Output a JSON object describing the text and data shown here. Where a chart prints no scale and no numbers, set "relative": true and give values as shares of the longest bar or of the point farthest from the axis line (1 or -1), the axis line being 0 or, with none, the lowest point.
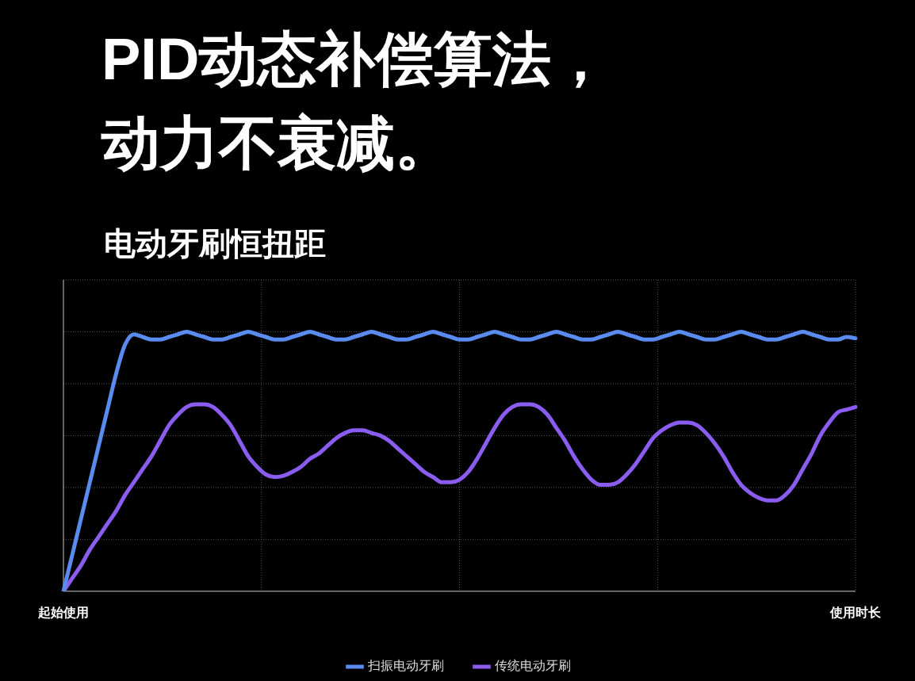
{
  "chart_data": {
    "type": "line",
    "title": "PID动态补偿算法，动力不衰减。",
    "subtitle": "电动牙刷恒扭距",
    "relative": true,
    "grid": true,
    "legend": "bottom",
    "marker": "none",
    "line_style": "solid",
    "categories": [
      "起始使用",
      null,
      null,
      null,
      null,
      null,
      null,
      null,
      null,
      null,
      null,
      null,
      null,
      null,
      null,
      null,
      null,
      null,
      null,
      null,
      null,
      null,
      null,
      null,
      null,
      null,
      null,
      null,
      null,
      null,
      null,
      null,
      null,
      null,
      null,
      null,
      null,
      null,
      null,
      null,
      null,
      null,
      null,
      null,
      null,
      null,
      null,
      null,
      null,
      null,
      null,
      null,
      null,
      null,
      null,
      null,
      null,
      null,
      null,
      null,
      null,
      null,
      null,
      null,
      null,
      null,
      null,
      null,
      null,
      null,
      null,
      null,
      null,
      null,
      null,
      null,
      null,
      null,
      null,
      null,
      null,
      null,
      null,
      null,
      null,
      null,
      null,
      null,
      null,
      null,
      "使用时长"
    ],
    "series": [
      {
        "name": "扫振电动牙刷",
        "color": "#5a8cf0",
        "values": [
          0,
          0.14,
          0.28,
          0.42,
          0.56,
          0.7,
          0.84,
          0.95,
          0.99,
          0.98,
          0.97,
          0.97,
          0.98,
          0.99,
          1,
          0.99,
          0.98,
          0.97,
          0.97,
          0.98,
          0.99,
          1,
          0.99,
          0.98,
          0.97,
          0.97,
          0.98,
          0.99,
          1,
          0.99,
          0.98,
          0.97,
          0.97,
          0.98,
          0.99,
          1,
          0.99,
          0.98,
          0.97,
          0.97,
          0.98,
          0.99,
          1,
          0.99,
          0.98,
          0.97,
          0.97,
          0.98,
          0.99,
          1,
          0.99,
          0.98,
          0.97,
          0.97,
          0.98,
          0.99,
          1,
          0.99,
          0.98,
          0.97,
          0.97,
          0.98,
          0.99,
          1,
          0.99,
          0.98,
          0.97,
          0.97,
          0.98,
          0.99,
          1,
          0.99,
          0.98,
          0.97,
          0.97,
          0.98,
          0.99,
          1,
          0.99,
          0.98,
          0.97,
          0.97,
          0.98,
          0.99,
          1,
          0.99,
          0.98,
          0.97,
          0.97,
          0.98,
          0.975
        ]
      },
      {
        "name": "传统电动牙刷",
        "color": "#8a5cf0",
        "values": [
          0,
          0.05,
          0.1,
          0.16,
          0.21,
          0.26,
          0.31,
          0.37,
          0.42,
          0.47,
          0.52,
          0.58,
          0.64,
          0.68,
          0.71,
          0.72,
          0.72,
          0.71,
          0.68,
          0.64,
          0.58,
          0.52,
          0.48,
          0.45,
          0.44,
          0.445,
          0.46,
          0.48,
          0.51,
          0.53,
          0.56,
          0.59,
          0.61,
          0.62,
          0.62,
          0.61,
          0.6,
          0.58,
          0.55,
          0.52,
          0.49,
          0.46,
          0.44,
          0.42,
          0.42,
          0.43,
          0.46,
          0.51,
          0.57,
          0.63,
          0.68,
          0.71,
          0.72,
          0.72,
          0.71,
          0.68,
          0.63,
          0.58,
          0.52,
          0.47,
          0.43,
          0.41,
          0.41,
          0.42,
          0.45,
          0.49,
          0.54,
          0.59,
          0.62,
          0.64,
          0.65,
          0.65,
          0.64,
          0.61,
          0.57,
          0.52,
          0.46,
          0.41,
          0.38,
          0.36,
          0.35,
          0.35,
          0.37,
          0.41,
          0.47,
          0.53,
          0.6,
          0.65,
          0.69,
          0.7,
          0.71
        ]
      }
    ]
  }
}
